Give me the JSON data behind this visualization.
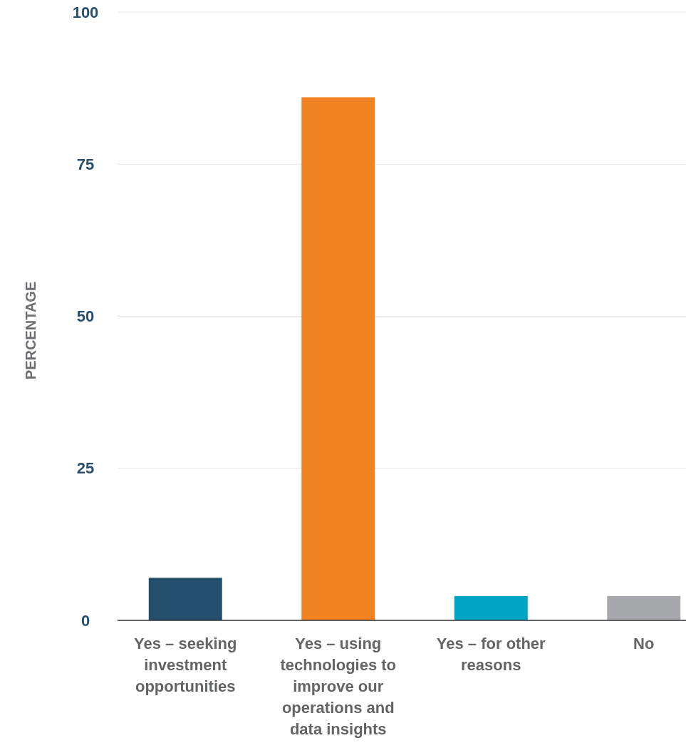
{
  "chart_data": {
    "type": "bar",
    "ylabel": "PERCENTAGE",
    "categories": [
      "Yes – seeking investment opportunities",
      "Yes – using technologies to improve our operations and data insights",
      "Yes – for other reasons",
      "No"
    ],
    "values": [
      7,
      86,
      4,
      4
    ],
    "colors": [
      "#234e6c",
      "#f28322",
      "#00a3c1",
      "#a7a8ab"
    ],
    "ylim": [
      0,
      100
    ],
    "yticks": [
      0,
      25,
      50,
      75,
      100
    ],
    "grid": "y"
  }
}
